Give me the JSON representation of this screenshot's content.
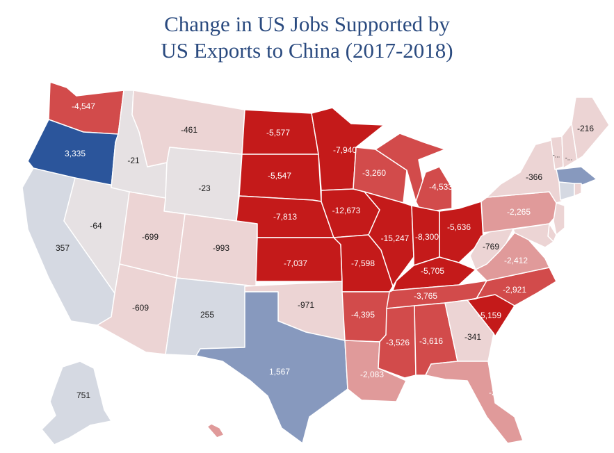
{
  "title": {
    "line1": "Change in US Jobs Supported by",
    "line2": "US Exports to China (2017-2018)"
  },
  "colors": {
    "title": "#2a4a7f",
    "strong_negative": "#c41a1a",
    "moderate_negative": "#d24b4b",
    "light_negative": "#e09a9a",
    "faint_negative": "#ecd4d4",
    "near_zero": "#e6e1e3",
    "light_positive": "#d5d9e2",
    "moderate_positive": "#8799be",
    "strong_positive": "#2b559b"
  },
  "states": {
    "WA": {
      "name": "Washington",
      "value": "-4,547",
      "category": "moderate_negative"
    },
    "OR": {
      "name": "Oregon",
      "value": "3,335",
      "category": "strong_positive"
    },
    "CA": {
      "name": "California",
      "value": "357",
      "category": "light_positive"
    },
    "NV": {
      "name": "Nevada",
      "value": "-64",
      "category": "near_zero"
    },
    "ID": {
      "name": "Idaho",
      "value": "-21",
      "category": "near_zero"
    },
    "MT": {
      "name": "Montana",
      "value": "-461",
      "category": "faint_negative"
    },
    "WY": {
      "name": "Wyoming",
      "value": "-23",
      "category": "near_zero"
    },
    "UT": {
      "name": "Utah",
      "value": "-699",
      "category": "faint_negative"
    },
    "AZ": {
      "name": "Arizona",
      "value": "-609",
      "category": "faint_negative"
    },
    "CO": {
      "name": "Colorado",
      "value": "-993",
      "category": "faint_negative"
    },
    "NM": {
      "name": "New Mexico",
      "value": "255",
      "category": "light_positive"
    },
    "ND": {
      "name": "North Dakota",
      "value": "-5,577",
      "category": "strong_negative"
    },
    "SD": {
      "name": "South Dakota",
      "value": "-5,547",
      "category": "strong_negative"
    },
    "NE": {
      "name": "Nebraska",
      "value": "-7,813",
      "category": "strong_negative"
    },
    "KS": {
      "name": "Kansas",
      "value": "-7,037",
      "category": "strong_negative"
    },
    "OK": {
      "name": "Oklahoma",
      "value": "-971",
      "category": "faint_negative"
    },
    "TX": {
      "name": "Texas",
      "value": "1,567",
      "category": "moderate_positive"
    },
    "MN": {
      "name": "Minnesota",
      "value": "-7,940",
      "category": "strong_negative"
    },
    "IA": {
      "name": "Iowa",
      "value": "-12,673",
      "category": "strong_negative"
    },
    "MO": {
      "name": "Missouri",
      "value": "-7,598",
      "category": "strong_negative"
    },
    "AR": {
      "name": "Arkansas",
      "value": "-4,395",
      "category": "moderate_negative"
    },
    "LA": {
      "name": "Louisiana",
      "value": "-2,083",
      "category": "light_negative"
    },
    "WI": {
      "name": "Wisconsin",
      "value": "-3,260",
      "category": "moderate_negative"
    },
    "IL": {
      "name": "Illinois",
      "value": "-15,247",
      "category": "strong_negative"
    },
    "MI": {
      "name": "Michigan",
      "value": "-4,533",
      "category": "moderate_negative"
    },
    "IN": {
      "name": "Indiana",
      "value": "-8,300",
      "category": "strong_negative"
    },
    "OH": {
      "name": "Ohio",
      "value": "-5,636",
      "category": "strong_negative"
    },
    "KY": {
      "name": "Kentucky",
      "value": "-5,705",
      "category": "strong_negative"
    },
    "TN": {
      "name": "Tennessee",
      "value": "-3,765",
      "category": "moderate_negative"
    },
    "MS": {
      "name": "Mississippi",
      "value": "-3,526",
      "category": "moderate_negative"
    },
    "AL": {
      "name": "Alabama",
      "value": "-3,616",
      "category": "moderate_negative"
    },
    "GA": {
      "name": "Georgia",
      "value": "-341",
      "category": "faint_negative"
    },
    "FL": {
      "name": "Florida",
      "value": "-2,078",
      "category": "light_negative"
    },
    "SC": {
      "name": "South Carolina",
      "value": "-5,159",
      "category": "strong_negative"
    },
    "NC": {
      "name": "North Carolina",
      "value": "-2,921",
      "category": "moderate_negative"
    },
    "VA": {
      "name": "Virginia",
      "value": "-2,412",
      "category": "light_negative"
    },
    "WV": {
      "name": "West Virginia",
      "value": "-769",
      "category": "faint_negative"
    },
    "PA": {
      "name": "Pennsylvania",
      "value": "-2,265",
      "category": "light_negative"
    },
    "NY": {
      "name": "New York",
      "value": "-366",
      "category": "faint_negative"
    },
    "VT": {
      "name": "Vermont",
      "value": "-...",
      "category": "faint_negative"
    },
    "NH": {
      "name": "New Hampshire",
      "value": "-...",
      "category": "faint_negative"
    },
    "ME": {
      "name": "Maine",
      "value": "-216",
      "category": "faint_negative"
    },
    "MA": {
      "name": "Massachusetts",
      "value": "",
      "category": "moderate_positive"
    },
    "CT": {
      "name": "Connecticut",
      "value": "",
      "category": "light_positive"
    },
    "RI": {
      "name": "Rhode Island",
      "value": "",
      "category": "faint_negative"
    },
    "NJ": {
      "name": "New Jersey",
      "value": "",
      "category": "faint_negative"
    },
    "DE": {
      "name": "Delaware",
      "value": "",
      "category": "faint_negative"
    },
    "MD": {
      "name": "Maryland",
      "value": "",
      "category": "faint_negative"
    },
    "AK": {
      "name": "Alaska",
      "value": "751",
      "category": "light_positive"
    },
    "HI": {
      "name": "Hawaii",
      "value": "",
      "category": "light_negative"
    }
  }
}
